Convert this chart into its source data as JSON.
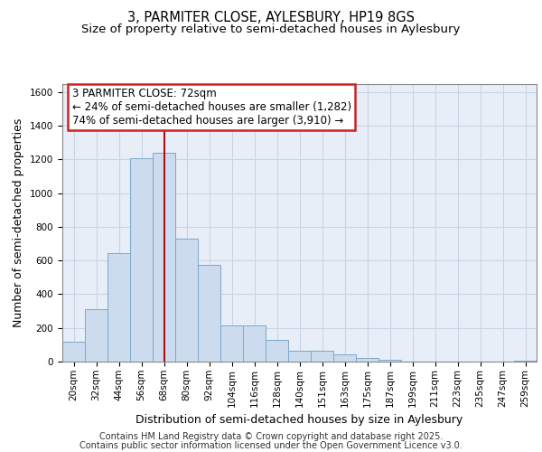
{
  "title_line1": "3, PARMITER CLOSE, AYLESBURY, HP19 8GS",
  "title_line2": "Size of property relative to semi-detached houses in Aylesbury",
  "xlabel": "Distribution of semi-detached houses by size in Aylesbury",
  "ylabel": "Number of semi-detached properties",
  "categories": [
    "20sqm",
    "32sqm",
    "44sqm",
    "56sqm",
    "68sqm",
    "80sqm",
    "92sqm",
    "104sqm",
    "116sqm",
    "128sqm",
    "140sqm",
    "151sqm",
    "163sqm",
    "175sqm",
    "187sqm",
    "199sqm",
    "211sqm",
    "223sqm",
    "235sqm",
    "247sqm",
    "259sqm"
  ],
  "values": [
    120,
    310,
    645,
    1210,
    1240,
    730,
    575,
    215,
    215,
    130,
    65,
    65,
    45,
    20,
    12,
    2,
    2,
    2,
    0,
    0,
    8
  ],
  "bar_color": "#ccdcee",
  "bar_edge_color": "#7aa8cc",
  "vline_x": 4.0,
  "vline_color": "#aa1111",
  "annotation_line1": "3 PARMITER CLOSE: 72sqm",
  "annotation_line2": "← 24% of semi-detached houses are smaller (1,282)",
  "annotation_line3": "74% of semi-detached houses are larger (3,910) →",
  "annotation_box_color": "#ffffff",
  "annotation_box_edge": "#cc2222",
  "ylim": [
    0,
    1650
  ],
  "yticks": [
    0,
    200,
    400,
    600,
    800,
    1000,
    1200,
    1400,
    1600
  ],
  "grid_color": "#c8d4e4",
  "background_color": "#e8eef8",
  "footer_line1": "Contains HM Land Registry data © Crown copyright and database right 2025.",
  "footer_line2": "Contains public sector information licensed under the Open Government Licence v3.0.",
  "title_fontsize": 10.5,
  "subtitle_fontsize": 9.5,
  "axis_label_fontsize": 9,
  "tick_fontsize": 7.5,
  "annotation_fontsize": 8.5,
  "footer_fontsize": 7
}
